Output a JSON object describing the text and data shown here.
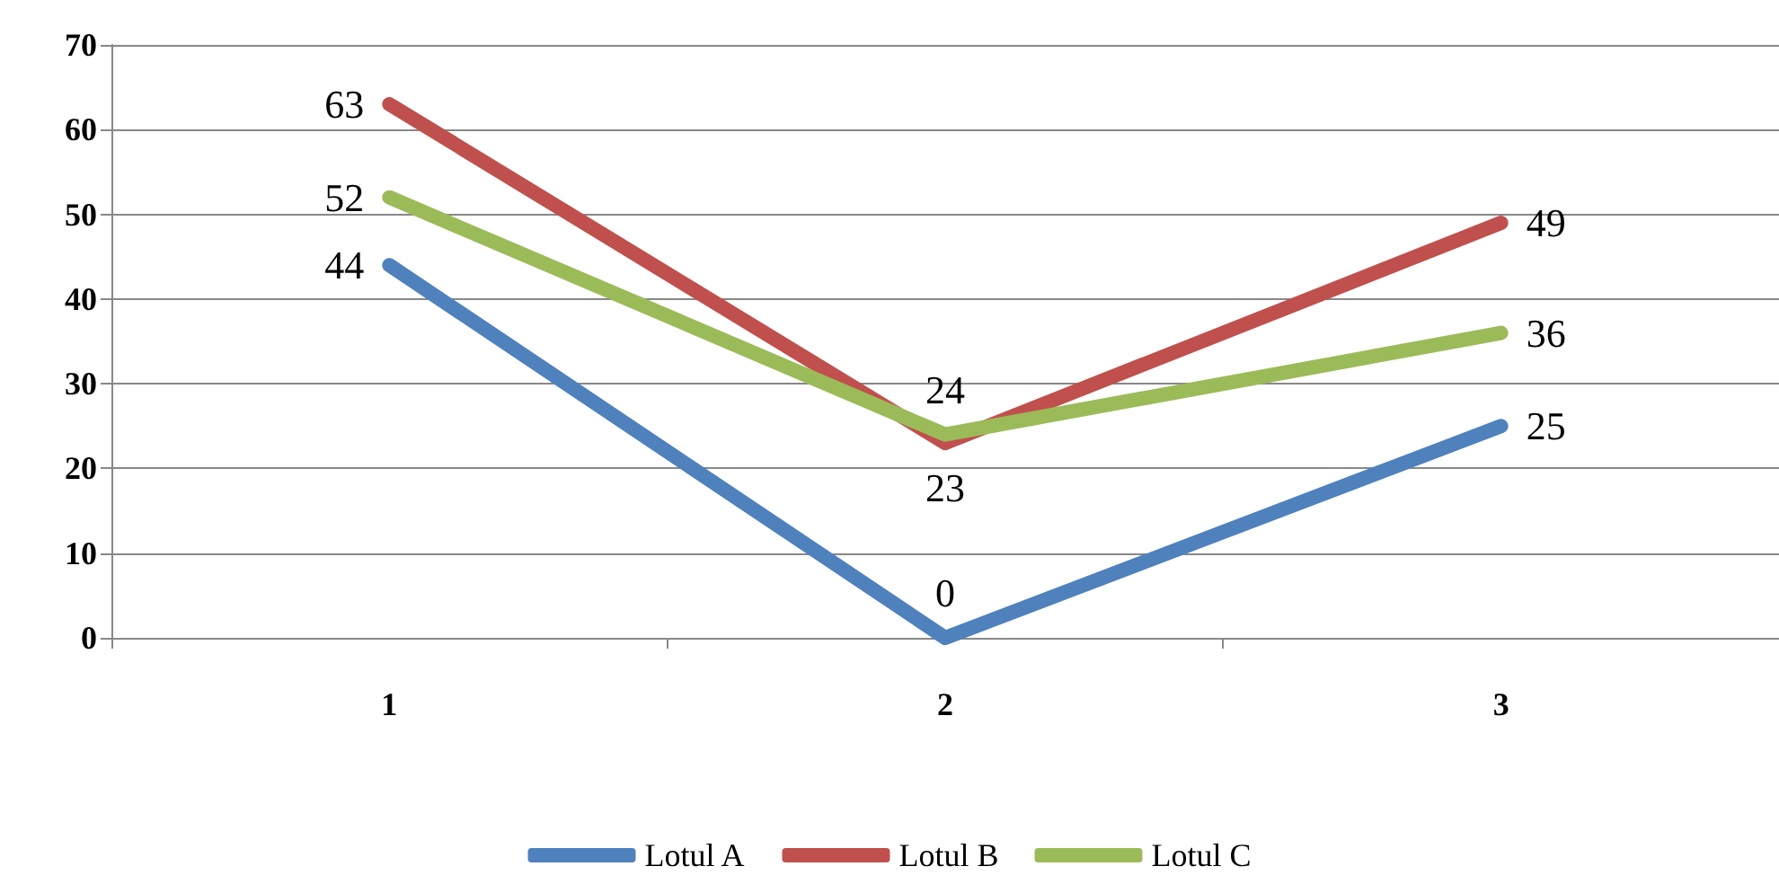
{
  "chart_data": {
    "type": "line",
    "categories": [
      "1",
      "2",
      "3"
    ],
    "series": [
      {
        "name": "Lotul A",
        "color": "#4f81bd",
        "values": [
          44,
          0,
          25
        ]
      },
      {
        "name": "Lotul B",
        "color": "#c0504d",
        "values": [
          63,
          23,
          49
        ]
      },
      {
        "name": "Lotul C",
        "color": "#9bbb59",
        "values": [
          52,
          24,
          36
        ]
      }
    ],
    "ylim": [
      0,
      70
    ],
    "yticks": [
      0,
      10,
      20,
      30,
      40,
      50,
      60,
      70
    ],
    "grid": "y",
    "legend": "bottom",
    "marker": "none",
    "data_labels": true
  }
}
